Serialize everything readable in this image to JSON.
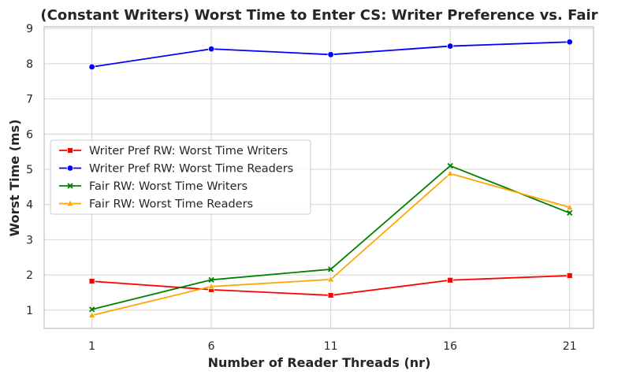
{
  "chart_data": {
    "type": "line",
    "title": "(Constant Writers) Worst Time to Enter CS: Writer Preference vs. Fair",
    "xlabel": "Number of Reader Threads (nr)",
    "ylabel": "Worst Time (ms)",
    "x": [
      1,
      6,
      11,
      16,
      21
    ],
    "xticks": [
      "1",
      "6",
      "11",
      "16",
      "21"
    ],
    "yticks": [
      "1",
      "2",
      "3",
      "4",
      "5",
      "6",
      "7",
      "8",
      "9"
    ],
    "xlim": [
      -1,
      22
    ],
    "ylim": [
      0.48,
      9.05
    ],
    "grid": true,
    "legend_position": "center-left",
    "series": [
      {
        "name": "Writer Pref RW: Worst Time Writers",
        "color": "#ff0000",
        "marker": "square",
        "values": [
          1.82,
          1.58,
          1.42,
          1.85,
          1.98
        ]
      },
      {
        "name": "Writer Pref RW: Worst Time Readers",
        "color": "#0000ff",
        "marker": "circle",
        "values": [
          7.91,
          8.42,
          8.26,
          8.5,
          8.62
        ]
      },
      {
        "name": "Fair RW: Worst Time Writers",
        "color": "#008000",
        "marker": "x",
        "values": [
          1.02,
          1.86,
          2.16,
          5.1,
          3.76
        ]
      },
      {
        "name": "Fair RW: Worst Time Readers",
        "color": "#ffa500",
        "marker": "triangle",
        "values": [
          0.85,
          1.67,
          1.87,
          4.88,
          3.92
        ]
      }
    ]
  }
}
